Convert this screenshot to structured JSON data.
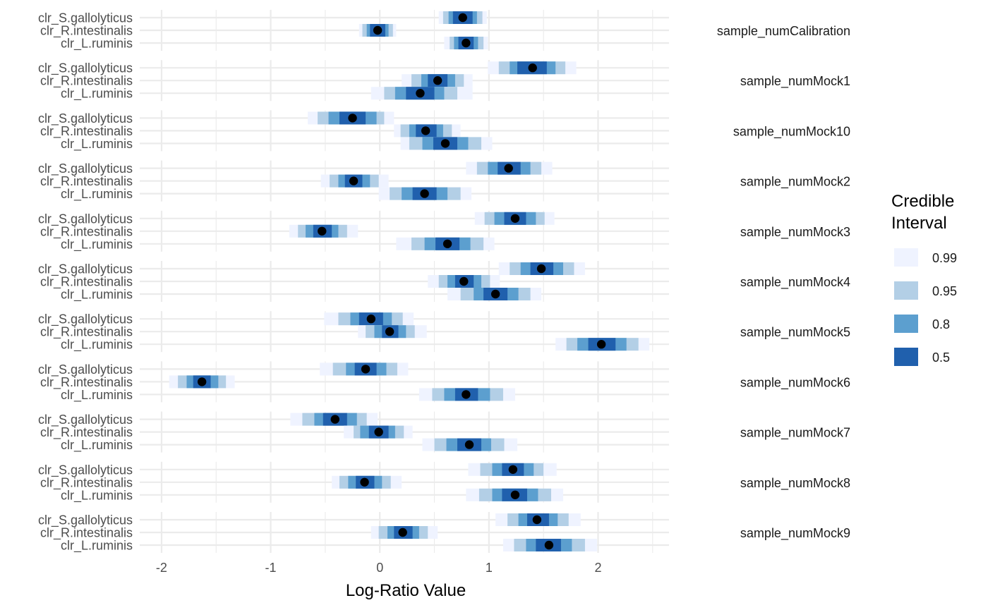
{
  "chart_data": {
    "type": "interval",
    "xlabel": "Log-Ratio Value",
    "xlim": [
      -2.2,
      2.65
    ],
    "x_ticks": [
      -2,
      -1,
      0,
      1,
      2
    ],
    "x_tick_labels": [
      "-2",
      "-1",
      "0",
      "1",
      "2"
    ],
    "grid": true,
    "y_categories": [
      "clr_S.gallolyticus",
      "clr_R.intestinalis",
      "clr_L.ruminis"
    ],
    "legend": {
      "title_lines": [
        "Credible",
        "Interval"
      ],
      "position": "right",
      "entries": [
        {
          "label": "0.99",
          "color": "#eff3ff"
        },
        {
          "label": "0.95",
          "color": "#b3cfe6"
        },
        {
          "label": "0.8",
          "color": "#5c9fcf"
        },
        {
          "label": "0.5",
          "color": "#2060ad"
        }
      ]
    },
    "panels": [
      {
        "label": "sample_numCalibration",
        "rows": [
          {
            "name": "clr_S.gallolyticus",
            "median": 0.76,
            "i50": [
              0.67,
              0.85
            ],
            "i80": [
              0.63,
              0.89
            ],
            "i95": [
              0.58,
              0.94
            ],
            "i99": [
              0.54,
              0.98
            ]
          },
          {
            "name": "clr_R.intestinalis",
            "median": -0.02,
            "i50": [
              -0.09,
              0.05
            ],
            "i80": [
              -0.12,
              0.08
            ],
            "i95": [
              -0.16,
              0.12
            ],
            "i99": [
              -0.19,
              0.15
            ]
          },
          {
            "name": "clr_L.ruminis",
            "median": 0.79,
            "i50": [
              0.72,
              0.86
            ],
            "i80": [
              0.68,
              0.9
            ],
            "i95": [
              0.64,
              0.95
            ],
            "i99": [
              0.59,
              0.99
            ]
          }
        ]
      },
      {
        "label": "sample_numMock1",
        "rows": [
          {
            "name": "clr_S.gallolyticus",
            "median": 1.4,
            "i50": [
              1.26,
              1.53
            ],
            "i80": [
              1.19,
              1.61
            ],
            "i95": [
              1.09,
              1.7
            ],
            "i99": [
              0.99,
              1.8
            ]
          },
          {
            "name": "clr_R.intestinalis",
            "median": 0.53,
            "i50": [
              0.44,
              0.62
            ],
            "i80": [
              0.38,
              0.69
            ],
            "i95": [
              0.29,
              0.77
            ],
            "i99": [
              0.2,
              0.85
            ]
          },
          {
            "name": "clr_L.ruminis",
            "median": 0.37,
            "i50": [
              0.24,
              0.5
            ],
            "i80": [
              0.14,
              0.59
            ],
            "i95": [
              0.04,
              0.71
            ],
            "i99": [
              -0.08,
              0.85
            ]
          }
        ]
      },
      {
        "label": "sample_numMock10",
        "rows": [
          {
            "name": "clr_S.gallolyticus",
            "median": -0.25,
            "i50": [
              -0.37,
              -0.13
            ],
            "i80": [
              -0.47,
              -0.03
            ],
            "i95": [
              -0.57,
              0.04
            ],
            "i99": [
              -0.66,
              0.13
            ]
          },
          {
            "name": "clr_R.intestinalis",
            "median": 0.42,
            "i50": [
              0.33,
              0.52
            ],
            "i80": [
              0.27,
              0.58
            ],
            "i95": [
              0.19,
              0.66
            ],
            "i99": [
              0.13,
              0.74
            ]
          },
          {
            "name": "clr_L.ruminis",
            "median": 0.6,
            "i50": [
              0.49,
              0.71
            ],
            "i80": [
              0.39,
              0.81
            ],
            "i95": [
              0.27,
              0.93
            ],
            "i99": [
              0.19,
              1.03
            ]
          }
        ]
      },
      {
        "label": "sample_numMock2",
        "rows": [
          {
            "name": "clr_S.gallolyticus",
            "median": 1.18,
            "i50": [
              1.08,
              1.29
            ],
            "i80": [
              0.99,
              1.38
            ],
            "i95": [
              0.89,
              1.48
            ],
            "i99": [
              0.79,
              1.58
            ]
          },
          {
            "name": "clr_R.intestinalis",
            "median": -0.24,
            "i50": [
              -0.32,
              -0.16
            ],
            "i80": [
              -0.38,
              -0.09
            ],
            "i95": [
              -0.46,
              -0.01
            ],
            "i99": [
              -0.54,
              0.08
            ]
          },
          {
            "name": "clr_L.ruminis",
            "median": 0.41,
            "i50": [
              0.3,
              0.52
            ],
            "i80": [
              0.2,
              0.62
            ],
            "i95": [
              0.09,
              0.74
            ],
            "i99": [
              -0.01,
              0.84
            ]
          }
        ]
      },
      {
        "label": "sample_numMock3",
        "rows": [
          {
            "name": "clr_S.gallolyticus",
            "median": 1.24,
            "i50": [
              1.14,
              1.34
            ],
            "i80": [
              1.05,
              1.43
            ],
            "i95": [
              0.96,
              1.51
            ],
            "i99": [
              0.87,
              1.6
            ]
          },
          {
            "name": "clr_R.intestinalis",
            "median": -0.53,
            "i50": [
              -0.61,
              -0.44
            ],
            "i80": [
              -0.68,
              -0.38
            ],
            "i95": [
              -0.75,
              -0.3
            ],
            "i99": [
              -0.83,
              -0.2
            ]
          },
          {
            "name": "clr_L.ruminis",
            "median": 0.62,
            "i50": [
              0.51,
              0.73
            ],
            "i80": [
              0.41,
              0.83
            ],
            "i95": [
              0.29,
              0.95
            ],
            "i99": [
              0.15,
              1.05
            ]
          }
        ]
      },
      {
        "label": "sample_numMock4",
        "rows": [
          {
            "name": "clr_S.gallolyticus",
            "median": 1.48,
            "i50": [
              1.38,
              1.59
            ],
            "i80": [
              1.29,
              1.68
            ],
            "i95": [
              1.19,
              1.78
            ],
            "i99": [
              1.09,
              1.88
            ]
          },
          {
            "name": "clr_R.intestinalis",
            "median": 0.77,
            "i50": [
              0.69,
              0.86
            ],
            "i80": [
              0.62,
              0.93
            ],
            "i95": [
              0.54,
              1.01
            ],
            "i99": [
              0.44,
              1.1
            ]
          },
          {
            "name": "clr_L.ruminis",
            "median": 1.06,
            "i50": [
              0.95,
              1.17
            ],
            "i80": [
              0.86,
              1.27
            ],
            "i95": [
              0.74,
              1.38
            ],
            "i99": [
              0.62,
              1.48
            ]
          }
        ]
      },
      {
        "label": "sample_numMock5",
        "rows": [
          {
            "name": "clr_S.gallolyticus",
            "median": -0.08,
            "i50": [
              -0.19,
              0.03
            ],
            "i80": [
              -0.27,
              0.11
            ],
            "i95": [
              -0.38,
              0.21
            ],
            "i99": [
              -0.51,
              0.31
            ]
          },
          {
            "name": "clr_R.intestinalis",
            "median": 0.09,
            "i50": [
              0.02,
              0.17
            ],
            "i80": [
              -0.05,
              0.24
            ],
            "i95": [
              -0.13,
              0.32
            ],
            "i99": [
              -0.2,
              0.43
            ]
          },
          {
            "name": "clr_L.ruminis",
            "median": 2.03,
            "i50": [
              1.91,
              2.16
            ],
            "i80": [
              1.81,
              2.26
            ],
            "i95": [
              1.71,
              2.37
            ],
            "i99": [
              1.61,
              2.47
            ]
          }
        ]
      },
      {
        "label": "sample_numMock6",
        "rows": [
          {
            "name": "clr_S.gallolyticus",
            "median": -0.13,
            "i50": [
              -0.23,
              -0.03
            ],
            "i80": [
              -0.31,
              0.06
            ],
            "i95": [
              -0.43,
              0.16
            ],
            "i99": [
              -0.55,
              0.26
            ]
          },
          {
            "name": "clr_R.intestinalis",
            "median": -1.63,
            "i50": [
              -1.71,
              -1.55
            ],
            "i80": [
              -1.77,
              -1.48
            ],
            "i95": [
              -1.85,
              -1.41
            ],
            "i99": [
              -1.93,
              -1.33
            ]
          },
          {
            "name": "clr_L.ruminis",
            "median": 0.79,
            "i50": [
              0.69,
              0.9
            ],
            "i80": [
              0.59,
              1.01
            ],
            "i95": [
              0.48,
              1.13
            ],
            "i99": [
              0.36,
              1.24
            ]
          }
        ]
      },
      {
        "label": "sample_numMock7",
        "rows": [
          {
            "name": "clr_S.gallolyticus",
            "median": -0.41,
            "i50": [
              -0.52,
              -0.3
            ],
            "i80": [
              -0.6,
              -0.21
            ],
            "i95": [
              -0.71,
              -0.12
            ],
            "i99": [
              -0.82,
              -0.02
            ]
          },
          {
            "name": "clr_R.intestinalis",
            "median": -0.01,
            "i50": [
              -0.1,
              0.08
            ],
            "i80": [
              -0.18,
              0.14
            ],
            "i95": [
              -0.24,
              0.22
            ],
            "i99": [
              -0.33,
              0.3
            ]
          },
          {
            "name": "clr_L.ruminis",
            "median": 0.82,
            "i50": [
              0.71,
              0.93
            ],
            "i80": [
              0.61,
              1.02
            ],
            "i95": [
              0.5,
              1.14
            ],
            "i99": [
              0.39,
              1.26
            ]
          }
        ]
      },
      {
        "label": "sample_numMock8",
        "rows": [
          {
            "name": "clr_S.gallolyticus",
            "median": 1.22,
            "i50": [
              1.12,
              1.32
            ],
            "i80": [
              1.03,
              1.41
            ],
            "i95": [
              0.92,
              1.5
            ],
            "i99": [
              0.81,
              1.62
            ]
          },
          {
            "name": "clr_R.intestinalis",
            "median": -0.14,
            "i50": [
              -0.22,
              -0.05
            ],
            "i80": [
              -0.29,
              0.02
            ],
            "i95": [
              -0.37,
              0.1
            ],
            "i99": [
              -0.44,
              0.2
            ]
          },
          {
            "name": "clr_L.ruminis",
            "median": 1.24,
            "i50": [
              1.12,
              1.35
            ],
            "i80": [
              1.03,
              1.45
            ],
            "i95": [
              0.91,
              1.57
            ],
            "i99": [
              0.79,
              1.68
            ]
          }
        ]
      },
      {
        "label": "sample_numMock9",
        "rows": [
          {
            "name": "clr_S.gallolyticus",
            "median": 1.44,
            "i50": [
              1.35,
              1.55
            ],
            "i80": [
              1.27,
              1.63
            ],
            "i95": [
              1.17,
              1.73
            ],
            "i99": [
              1.06,
              1.84
            ]
          },
          {
            "name": "clr_R.intestinalis",
            "median": 0.21,
            "i50": [
              0.13,
              0.3
            ],
            "i80": [
              0.07,
              0.36
            ],
            "i95": [
              -0.01,
              0.44
            ],
            "i99": [
              -0.08,
              0.53
            ]
          },
          {
            "name": "clr_L.ruminis",
            "median": 1.55,
            "i50": [
              1.43,
              1.66
            ],
            "i80": [
              1.34,
              1.76
            ],
            "i95": [
              1.23,
              1.88
            ],
            "i99": [
              1.13,
              1.99
            ]
          }
        ]
      }
    ]
  }
}
